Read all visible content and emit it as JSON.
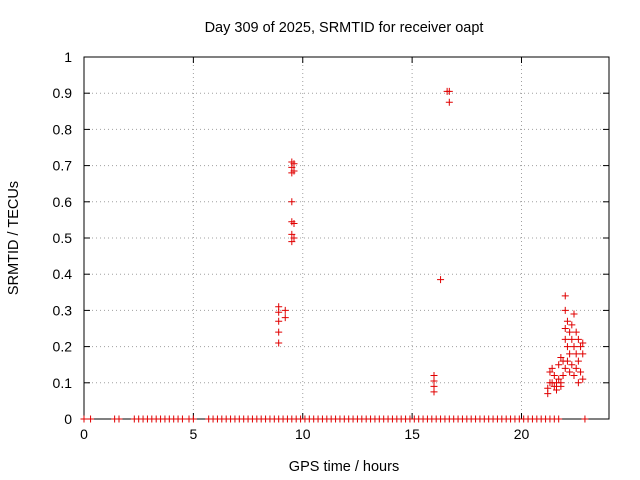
{
  "chart_data": {
    "type": "scatter",
    "title": "Day 309 of 2025, SRMTID for receiver oapt",
    "xlabel": "GPS time / hours",
    "ylabel": "SRMTID / TECUs",
    "xlim": [
      0,
      24
    ],
    "ylim": [
      0,
      1
    ],
    "xticks": [
      "0",
      "5",
      "10",
      "15",
      "20"
    ],
    "yticks": [
      "0",
      "0.1",
      "0.2",
      "0.3",
      "0.4",
      "0.5",
      "0.6",
      "0.7",
      "0.8",
      "0.9",
      "1"
    ],
    "grid": true,
    "marker": "+",
    "series": [
      {
        "name": "SRMTID",
        "color": "#e00000",
        "points": [
          [
            0.0,
            0
          ],
          [
            0.3,
            0
          ],
          [
            1.4,
            0
          ],
          [
            1.6,
            0
          ],
          [
            2.3,
            0
          ],
          [
            2.5,
            0
          ],
          [
            2.7,
            0
          ],
          [
            2.9,
            0
          ],
          [
            3.1,
            0
          ],
          [
            3.3,
            0
          ],
          [
            3.5,
            0
          ],
          [
            3.7,
            0
          ],
          [
            3.9,
            0
          ],
          [
            4.1,
            0
          ],
          [
            4.3,
            0
          ],
          [
            4.5,
            0
          ],
          [
            4.8,
            0
          ],
          [
            5.0,
            0
          ],
          [
            5.7,
            0
          ],
          [
            5.9,
            0
          ],
          [
            6.1,
            0
          ],
          [
            6.3,
            0
          ],
          [
            6.5,
            0
          ],
          [
            6.7,
            0
          ],
          [
            6.9,
            0
          ],
          [
            7.1,
            0
          ],
          [
            7.3,
            0
          ],
          [
            7.5,
            0
          ],
          [
            7.7,
            0
          ],
          [
            7.9,
            0
          ],
          [
            8.1,
            0
          ],
          [
            8.3,
            0
          ],
          [
            8.5,
            0
          ],
          [
            8.7,
            0
          ],
          [
            8.9,
            0
          ],
          [
            9.1,
            0
          ],
          [
            9.3,
            0
          ],
          [
            9.5,
            0
          ],
          [
            9.7,
            0
          ],
          [
            9.9,
            0
          ],
          [
            10.1,
            0
          ],
          [
            10.3,
            0
          ],
          [
            10.5,
            0
          ],
          [
            10.7,
            0
          ],
          [
            10.9,
            0
          ],
          [
            11.1,
            0
          ],
          [
            11.3,
            0
          ],
          [
            11.5,
            0
          ],
          [
            11.7,
            0
          ],
          [
            11.9,
            0
          ],
          [
            12.1,
            0
          ],
          [
            12.3,
            0
          ],
          [
            12.5,
            0
          ],
          [
            12.7,
            0
          ],
          [
            12.9,
            0
          ],
          [
            13.1,
            0
          ],
          [
            13.3,
            0
          ],
          [
            13.5,
            0
          ],
          [
            13.7,
            0
          ],
          [
            13.9,
            0
          ],
          [
            14.1,
            0
          ],
          [
            14.3,
            0
          ],
          [
            14.5,
            0
          ],
          [
            14.7,
            0
          ],
          [
            14.9,
            0
          ],
          [
            15.1,
            0
          ],
          [
            15.3,
            0
          ],
          [
            15.5,
            0
          ],
          [
            15.7,
            0
          ],
          [
            15.9,
            0
          ],
          [
            16.1,
            0
          ],
          [
            16.3,
            0
          ],
          [
            16.5,
            0
          ],
          [
            16.7,
            0
          ],
          [
            16.9,
            0
          ],
          [
            17.1,
            0
          ],
          [
            17.3,
            0
          ],
          [
            17.5,
            0
          ],
          [
            17.7,
            0
          ],
          [
            17.9,
            0
          ],
          [
            18.1,
            0
          ],
          [
            18.3,
            0
          ],
          [
            18.5,
            0
          ],
          [
            18.7,
            0
          ],
          [
            18.9,
            0
          ],
          [
            19.1,
            0
          ],
          [
            19.3,
            0
          ],
          [
            19.5,
            0
          ],
          [
            19.7,
            0
          ],
          [
            19.9,
            0
          ],
          [
            20.1,
            0
          ],
          [
            20.3,
            0
          ],
          [
            20.5,
            0
          ],
          [
            20.7,
            0
          ],
          [
            20.9,
            0
          ],
          [
            21.1,
            0
          ],
          [
            21.3,
            0
          ],
          [
            21.5,
            0
          ],
          [
            21.7,
            0
          ],
          [
            22.9,
            0
          ],
          [
            8.9,
            0.21
          ],
          [
            8.9,
            0.24
          ],
          [
            8.9,
            0.27
          ],
          [
            8.9,
            0.295
          ],
          [
            8.9,
            0.31
          ],
          [
            9.2,
            0.28
          ],
          [
            9.2,
            0.3
          ],
          [
            9.5,
            0.49
          ],
          [
            9.5,
            0.51
          ],
          [
            9.5,
            0.545
          ],
          [
            9.5,
            0.6
          ],
          [
            9.5,
            0.68
          ],
          [
            9.5,
            0.695
          ],
          [
            9.5,
            0.71
          ],
          [
            9.6,
            0.5
          ],
          [
            9.6,
            0.54
          ],
          [
            9.6,
            0.685
          ],
          [
            9.6,
            0.705
          ],
          [
            16.0,
            0.075
          ],
          [
            16.0,
            0.09
          ],
          [
            16.0,
            0.105
          ],
          [
            16.0,
            0.12
          ],
          [
            16.3,
            0.385
          ],
          [
            16.6,
            0.905
          ],
          [
            16.7,
            0.905
          ],
          [
            16.7,
            0.875
          ],
          [
            21.2,
            0.07
          ],
          [
            21.2,
            0.085
          ],
          [
            21.3,
            0.1
          ],
          [
            21.3,
            0.13
          ],
          [
            21.4,
            0.1
          ],
          [
            21.4,
            0.14
          ],
          [
            21.5,
            0.09
          ],
          [
            21.5,
            0.12
          ],
          [
            21.6,
            0.1
          ],
          [
            21.6,
            0.08
          ],
          [
            21.7,
            0.11
          ],
          [
            21.7,
            0.15
          ],
          [
            21.8,
            0.1
          ],
          [
            21.8,
            0.17
          ],
          [
            21.8,
            0.09
          ],
          [
            21.9,
            0.12
          ],
          [
            21.9,
            0.16
          ],
          [
            22.0,
            0.22
          ],
          [
            22.0,
            0.25
          ],
          [
            22.0,
            0.3
          ],
          [
            22.0,
            0.34
          ],
          [
            22.0,
            0.14
          ],
          [
            22.1,
            0.2
          ],
          [
            22.1,
            0.27
          ],
          [
            22.1,
            0.16
          ],
          [
            22.2,
            0.24
          ],
          [
            22.2,
            0.13
          ],
          [
            22.2,
            0.18
          ],
          [
            22.3,
            0.22
          ],
          [
            22.3,
            0.26
          ],
          [
            22.3,
            0.15
          ],
          [
            22.4,
            0.2
          ],
          [
            22.4,
            0.12
          ],
          [
            22.4,
            0.29
          ],
          [
            22.5,
            0.24
          ],
          [
            22.5,
            0.18
          ],
          [
            22.5,
            0.14
          ],
          [
            22.6,
            0.1
          ],
          [
            22.6,
            0.22
          ],
          [
            22.6,
            0.16
          ],
          [
            22.7,
            0.2
          ],
          [
            22.7,
            0.13
          ],
          [
            22.8,
            0.18
          ],
          [
            22.8,
            0.21
          ],
          [
            22.8,
            0.11
          ]
        ]
      }
    ]
  }
}
